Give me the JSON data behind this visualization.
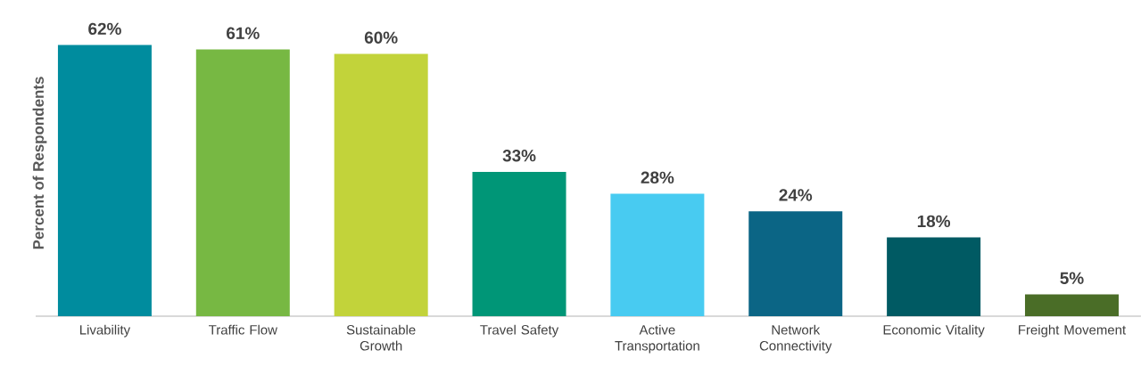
{
  "chart_data": {
    "type": "bar",
    "ylabel": "Percent of Respondents",
    "categories": [
      "Livability",
      "Traffic Flow",
      "Sustainable Growth",
      "Travel Safety",
      "Active Transportation",
      "Network Connectivity",
      "Economic Vitality",
      "Freight Movement"
    ],
    "values": [
      62,
      61,
      60,
      33,
      28,
      24,
      18,
      5
    ],
    "value_labels": [
      "62%",
      "61%",
      "60%",
      "33%",
      "28%",
      "24%",
      "18%",
      "5%"
    ],
    "colors": [
      "#008c9e",
      "#77b843",
      "#c2d33a",
      "#009677",
      "#48cbf1",
      "#0b6585",
      "#005a63",
      "#4a6d27"
    ]
  }
}
